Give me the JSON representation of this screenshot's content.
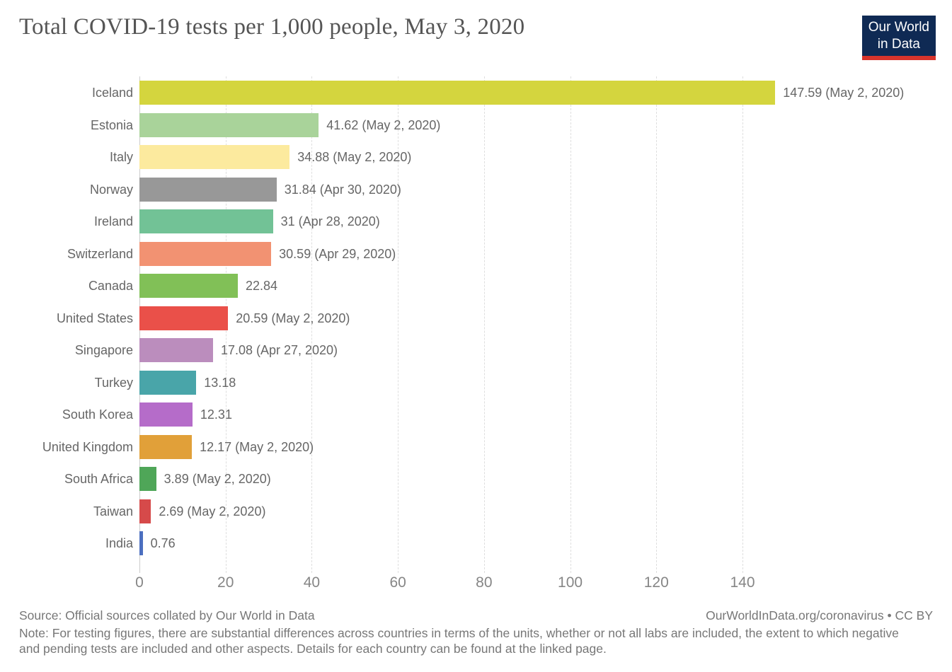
{
  "header": {
    "title": "Total COVID-19 tests per 1,000 people, May 3, 2020",
    "logo": {
      "line1": "Our World",
      "line2": "in Data",
      "bg_color": "#0f2a54",
      "accent_color": "#d8342c"
    }
  },
  "chart_data": {
    "type": "bar",
    "orientation": "horizontal",
    "title": "Total COVID-19 tests per 1,000 people, May 3, 2020",
    "xlabel": "",
    "ylabel": "",
    "xlim": [
      0,
      160
    ],
    "x_ticks": [
      0,
      20,
      40,
      60,
      80,
      100,
      120,
      140
    ],
    "grid": "dashed-vertical",
    "categories": [
      "Iceland",
      "Estonia",
      "Italy",
      "Norway",
      "Ireland",
      "Switzerland",
      "Canada",
      "United States",
      "Singapore",
      "Turkey",
      "South Korea",
      "United Kingdom",
      "South Africa",
      "Taiwan",
      "India"
    ],
    "values": [
      147.59,
      41.62,
      34.88,
      31.84,
      31,
      30.59,
      22.84,
      20.59,
      17.08,
      13.18,
      12.31,
      12.17,
      3.89,
      2.69,
      0.76
    ],
    "rows": [
      {
        "label": "Iceland",
        "value": 147.59,
        "value_label": "147.59 (May 2, 2020)",
        "color": "#d4d53e"
      },
      {
        "label": "Estonia",
        "value": 41.62,
        "value_label": "41.62 (May 2, 2020)",
        "color": "#a9d39a"
      },
      {
        "label": "Italy",
        "value": 34.88,
        "value_label": "34.88 (May 2, 2020)",
        "color": "#fcea9e"
      },
      {
        "label": "Norway",
        "value": 31.84,
        "value_label": "31.84 (Apr 30, 2020)",
        "color": "#989898"
      },
      {
        "label": "Ireland",
        "value": 31,
        "value_label": "31 (Apr 28, 2020)",
        "color": "#72c296"
      },
      {
        "label": "Switzerland",
        "value": 30.59,
        "value_label": "30.59 (Apr 29, 2020)",
        "color": "#f29272"
      },
      {
        "label": "Canada",
        "value": 22.84,
        "value_label": "22.84",
        "color": "#81c057"
      },
      {
        "label": "United States",
        "value": 20.59,
        "value_label": "20.59 (May 2, 2020)",
        "color": "#ea5049"
      },
      {
        "label": "Singapore",
        "value": 17.08,
        "value_label": "17.08 (Apr 27, 2020)",
        "color": "#bb8dbd"
      },
      {
        "label": "Turkey",
        "value": 13.18,
        "value_label": "13.18",
        "color": "#49a5a9"
      },
      {
        "label": "South Korea",
        "value": 12.31,
        "value_label": "12.31",
        "color": "#b56cc9"
      },
      {
        "label": "United Kingdom",
        "value": 12.17,
        "value_label": "12.17 (May 2, 2020)",
        "color": "#e1a039"
      },
      {
        "label": "South Africa",
        "value": 3.89,
        "value_label": "3.89 (May 2, 2020)",
        "color": "#4fa658"
      },
      {
        "label": "Taiwan",
        "value": 2.69,
        "value_label": "2.69 (May 2, 2020)",
        "color": "#d64a4a"
      },
      {
        "label": "India",
        "value": 0.76,
        "value_label": "0.76",
        "color": "#4c6fc0"
      }
    ]
  },
  "footer": {
    "source": "Source: Official sources collated by Our World in Data",
    "link": "OurWorldInData.org/coronavirus • CC BY",
    "note": "Note: For testing figures, there are substantial differences across countries in terms of the units, whether or not all labs are included, the extent to which negative and pending tests are included and other aspects. Details for each country can be found at the linked page."
  }
}
